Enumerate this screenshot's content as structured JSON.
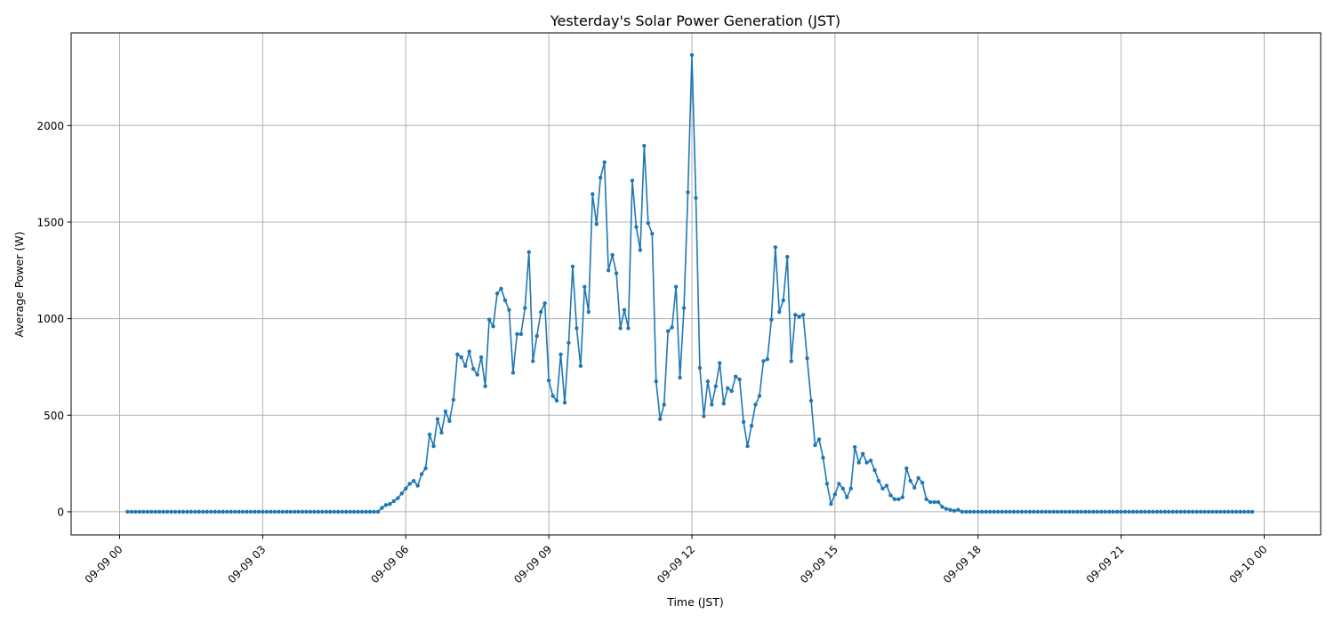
{
  "chart_data": {
    "type": "line",
    "title": "Yesterday's Solar Power Generation (JST)",
    "xlabel": "Time (JST)",
    "ylabel": "Average Power (W)",
    "x_range": [
      "09-09 00:00",
      "09-10 00:00"
    ],
    "x_ticks": [
      "09-09 00",
      "09-09 03",
      "09-09 06",
      "09-09 09",
      "09-09 12",
      "09-09 15",
      "09-09 18",
      "09-09 21",
      "09-10 00"
    ],
    "y_ticks": [
      0,
      500,
      1000,
      1500,
      2000
    ],
    "ylim": [
      -120,
      2480
    ],
    "grid": true,
    "color": "#1f77b4",
    "sampling_minutes": 5,
    "series": [
      {
        "first_time": "09-09 00:10",
        "last_time": "09-10 00:00",
        "values": [
          0,
          0,
          0,
          0,
          0,
          0,
          0,
          0,
          0,
          0,
          0,
          0,
          0,
          0,
          0,
          0,
          0,
          0,
          0,
          0,
          0,
          0,
          0,
          0,
          0,
          0,
          0,
          0,
          0,
          0,
          0,
          0,
          0,
          0,
          0,
          0,
          0,
          0,
          0,
          0,
          0,
          0,
          0,
          0,
          0,
          0,
          0,
          0,
          0,
          0,
          0,
          0,
          0,
          0,
          0,
          0,
          0,
          0,
          0,
          0,
          0,
          0,
          0,
          0,
          20,
          35,
          40,
          55,
          70,
          95,
          120,
          145,
          160,
          135,
          195,
          225,
          400,
          340,
          480,
          410,
          520,
          470,
          580,
          815,
          800,
          755,
          830,
          740,
          710,
          800,
          650,
          995,
          960,
          1130,
          1155,
          1095,
          1045,
          720,
          920,
          920,
          1055,
          1345,
          780,
          910,
          1035,
          1080,
          680,
          600,
          575,
          815,
          565,
          875,
          1270,
          950,
          755,
          1165,
          1035,
          1645,
          1490,
          1730,
          1810,
          1250,
          1330,
          1235,
          950,
          1045,
          950,
          1715,
          1475,
          1355,
          1895,
          1495,
          1440,
          675,
          480,
          555,
          935,
          955,
          1165,
          695,
          1055,
          1655,
          2365,
          1625,
          745,
          495,
          675,
          555,
          650,
          770,
          560,
          640,
          625,
          700,
          685,
          465,
          340,
          445,
          555,
          600,
          780,
          790,
          995,
          1370,
          1035,
          1095,
          1320,
          780,
          1020,
          1010,
          1020,
          795,
          575,
          345,
          375,
          280,
          145,
          40,
          90,
          145,
          120,
          75,
          120,
          335,
          255,
          300,
          255,
          265,
          215,
          160,
          120,
          135,
          85,
          65,
          65,
          75,
          225,
          160,
          125,
          175,
          150,
          65,
          50,
          50,
          50,
          25,
          15,
          10,
          5,
          10,
          0,
          0,
          0,
          0,
          0,
          0,
          0,
          0,
          0,
          0,
          0,
          0,
          0,
          0,
          0,
          0,
          0,
          0,
          0,
          0,
          0,
          0,
          0,
          0,
          0,
          0,
          0,
          0,
          0,
          0,
          0,
          0,
          0,
          0,
          0,
          0,
          0,
          0,
          0,
          0,
          0,
          0,
          0,
          0,
          0,
          0,
          0,
          0,
          0,
          0,
          0,
          0,
          0,
          0,
          0,
          0,
          0,
          0,
          0,
          0,
          0,
          0,
          0,
          0,
          0,
          0,
          0,
          0,
          0,
          0,
          0,
          0,
          0,
          0
        ]
      }
    ]
  }
}
